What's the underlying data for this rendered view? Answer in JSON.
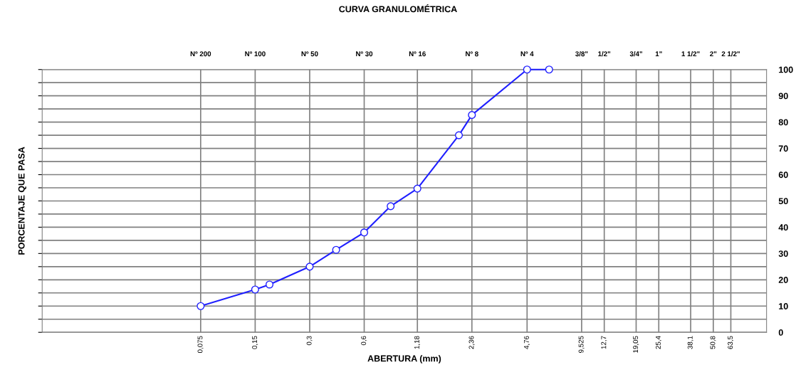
{
  "chart_data": {
    "type": "line",
    "title": "CURVA GRANULOMÉTRICA",
    "xlabel": "ABERTURA (mm)",
    "ylabel": "PORCENTAJE QUE PASA",
    "x": [
      0.075,
      0.15,
      0.18,
      0.3,
      0.42,
      0.6,
      0.84,
      1.18,
      2.0,
      2.36,
      4.76,
      6.3
    ],
    "series": [
      {
        "color": "#1f1fff",
        "values": [
          10,
          16.3,
          18.2,
          25,
          31.4,
          38,
          48,
          54.7,
          75,
          82.7,
          100,
          100
        ]
      }
    ],
    "log": "x",
    "xlim": [
      0.01,
      100
    ],
    "xticks": [
      {
        "value": 0.075,
        "label": "0,075"
      },
      {
        "value": 0.15,
        "label": "0,15"
      },
      {
        "value": 0.3,
        "label": "0,3"
      },
      {
        "value": 0.6,
        "label": "0,6"
      },
      {
        "value": 1.18,
        "label": "1,18"
      },
      {
        "value": 2.36,
        "label": "2,36"
      },
      {
        "value": 4.76,
        "label": "4,76"
      },
      {
        "value": 9.525,
        "label": "9,525"
      },
      {
        "value": 12.7,
        "label": "12,7"
      },
      {
        "value": 19.05,
        "label": "19,05"
      },
      {
        "value": 25.4,
        "label": "25,4"
      },
      {
        "value": 38.1,
        "label": "38,1"
      },
      {
        "value": 50.8,
        "label": "50,8"
      },
      {
        "value": 63.5,
        "label": "63,5"
      }
    ],
    "annotations": [
      "Nº 200",
      "Nº 100",
      "Nº 50",
      "Nº 30",
      "Nº 16",
      "Nº 8",
      "Nº 4",
      "3/8\"",
      "1/2\"",
      "3/4\"",
      "1\"",
      "1 1/2\"",
      "2\"",
      "2 1/2\""
    ],
    "ylim": [
      0,
      100
    ],
    "yticks": [
      0,
      {
        "value": 5,
        "label": null
      },
      10,
      {
        "value": 15,
        "label": null
      },
      20,
      {
        "value": 25,
        "label": null
      },
      30,
      {
        "value": 35,
        "label": null
      },
      40,
      {
        "value": 45,
        "label": null
      },
      50,
      {
        "value": 55,
        "label": null
      },
      60,
      {
        "value": 65,
        "label": null
      },
      70,
      {
        "value": 75,
        "label": null
      },
      80,
      {
        "value": 85,
        "label": null
      },
      90,
      {
        "value": 95,
        "label": null
      },
      100
    ],
    "grid": true,
    "marker": "circle",
    "line_style": "solid"
  }
}
